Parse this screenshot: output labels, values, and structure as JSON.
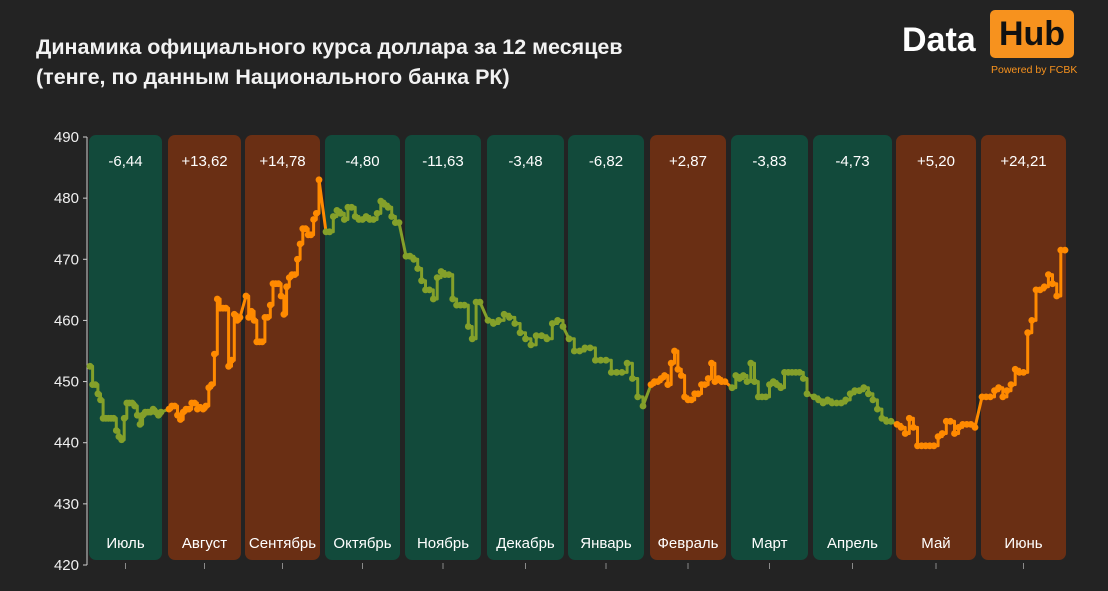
{
  "title_line1": "Динамика официального курса доллара за 12 месяцев",
  "title_line2": "(тенге, по данным Национального банка РК)",
  "logo": {
    "data": "Data",
    "hub": "Hub",
    "powered": "Powered by FCBK"
  },
  "colors": {
    "background": "#232323",
    "band_down": "#124a3b",
    "band_up": "#6a2f14",
    "line_up": "#ff8a00",
    "line_down": "#84a02a",
    "accent": "#f7921e"
  },
  "chart_data": {
    "type": "line",
    "title": "Динамика официального курса доллара за 12 месяцев",
    "subtitle": "(тенге, по данным Национального банка РК)",
    "ylim": [
      420,
      490
    ],
    "yticks": [
      420,
      430,
      440,
      450,
      460,
      470,
      480,
      490
    ],
    "grid": false,
    "months": [
      {
        "name": "Июль",
        "delta": "-6,44",
        "trend": "down",
        "values": [
          452.5,
          449.5,
          449.5,
          448.0,
          447.0,
          444.0,
          444.0,
          444.0,
          444.0,
          444.0,
          442.0,
          441.0,
          440.5,
          444.0,
          446.5,
          446.5,
          446.5,
          446.0,
          444.5,
          443.0,
          444.5,
          445.0,
          445.0,
          445.0,
          445.5,
          445.0,
          444.5,
          445.0
        ]
      },
      {
        "name": "Август",
        "delta": "+13,62",
        "trend": "up",
        "values": [
          445.5,
          446.0,
          446.0,
          444.5,
          443.8,
          445.0,
          445.5,
          445.5,
          446.5,
          446.5,
          445.5,
          445.8,
          445.5,
          446.0,
          449.0,
          449.5,
          454.5,
          463.5,
          462.0,
          462.0,
          462.0,
          452.5,
          453.5,
          461.0,
          460.0,
          460.5
        ]
      },
      {
        "name": "Сентябрь",
        "delta": "+14,78",
        "trend": "up",
        "values": [
          464.0,
          460.5,
          461.5,
          460.0,
          456.5,
          456.5,
          456.5,
          460.5,
          460.5,
          462.5,
          466.0,
          466.0,
          466.0,
          464.0,
          461.0,
          465.5,
          467.0,
          467.5,
          467.5,
          470.0,
          472.5,
          475.0,
          475.0,
          474.0,
          474.0,
          476.5,
          477.5,
          483.0
        ]
      },
      {
        "name": "Октябрь",
        "delta": "-4,80",
        "trend": "down",
        "values": [
          474.5,
          474.5,
          477.0,
          478.0,
          477.5,
          476.5,
          478.5,
          478.5,
          477.0,
          476.5,
          476.5,
          477.0,
          476.5,
          476.5,
          477.5,
          479.5,
          479.0,
          478.5,
          477.0,
          476.0,
          476.0
        ]
      },
      {
        "name": "Ноябрь",
        "delta": "-11,63",
        "trend": "down",
        "values": [
          470.5,
          470.5,
          470.0,
          468.5,
          466.5,
          465.0,
          465.0,
          463.5,
          467.0,
          468.0,
          467.5,
          467.5,
          463.5,
          462.5,
          462.5,
          462.5,
          459.0,
          457.0,
          463.0,
          463.0
        ]
      },
      {
        "name": "Декабрь",
        "delta": "-3,48",
        "trend": "down",
        "values": [
          460.0,
          459.5,
          460.0,
          461.0,
          460.5,
          459.5,
          458.0,
          457.0,
          456.0,
          457.5,
          457.5,
          457.0,
          459.5,
          460.0,
          459.0
        ]
      },
      {
        "name": "Январь",
        "delta": "-6,82",
        "trend": "down",
        "values": [
          457.0,
          455.0,
          455.0,
          455.5,
          455.5,
          453.5,
          453.5,
          453.5,
          451.5,
          451.5,
          451.5,
          453.0,
          450.5,
          447.5,
          446.0
        ]
      },
      {
        "name": "Февраль",
        "delta": "+2,87",
        "trend": "up",
        "values": [
          449.5,
          450.0,
          450.0,
          450.5,
          451.0,
          449.5,
          453.0,
          455.0,
          452.0,
          451.0,
          447.5,
          447.0,
          447.0,
          448.0,
          448.0,
          449.5,
          449.5,
          450.5,
          453.0,
          450.0,
          450.5,
          450.0,
          450.0
        ]
      },
      {
        "name": "Март",
        "delta": "-3,83",
        "trend": "down",
        "values": [
          449.0,
          451.0,
          450.5,
          451.0,
          450.0,
          453.0,
          450.0,
          447.5,
          447.5,
          447.5,
          449.5,
          450.0,
          449.5,
          449.0,
          451.5,
          451.5,
          451.5,
          451.5,
          451.5,
          450.5,
          448.0
        ]
      },
      {
        "name": "Апрель",
        "delta": "-4,73",
        "trend": "down",
        "values": [
          447.5,
          447.0,
          446.5,
          447.0,
          446.5,
          446.5,
          446.5,
          447.0,
          448.0,
          448.5,
          448.5,
          449.0,
          448.0,
          447.0,
          445.5,
          444.0,
          443.5,
          443.5
        ]
      },
      {
        "name": "Май",
        "delta": "+5,20",
        "trend": "up",
        "values": [
          443.0,
          442.5,
          441.5,
          444.0,
          442.5,
          439.5,
          439.5,
          439.5,
          439.5,
          439.5,
          441.0,
          441.5,
          443.5,
          443.5,
          441.5,
          442.5,
          443.0,
          443.0,
          443.0,
          442.5
        ]
      },
      {
        "name": "Июнь",
        "delta": "+24,21",
        "trend": "up",
        "values": [
          447.5,
          447.5,
          447.5,
          448.5,
          449.0,
          447.5,
          448.5,
          449.5,
          452.0,
          451.5,
          451.5,
          458.0,
          460.0,
          465.0,
          465.0,
          465.5,
          467.5,
          466.0,
          464.0,
          471.5,
          471.5
        ]
      }
    ]
  }
}
